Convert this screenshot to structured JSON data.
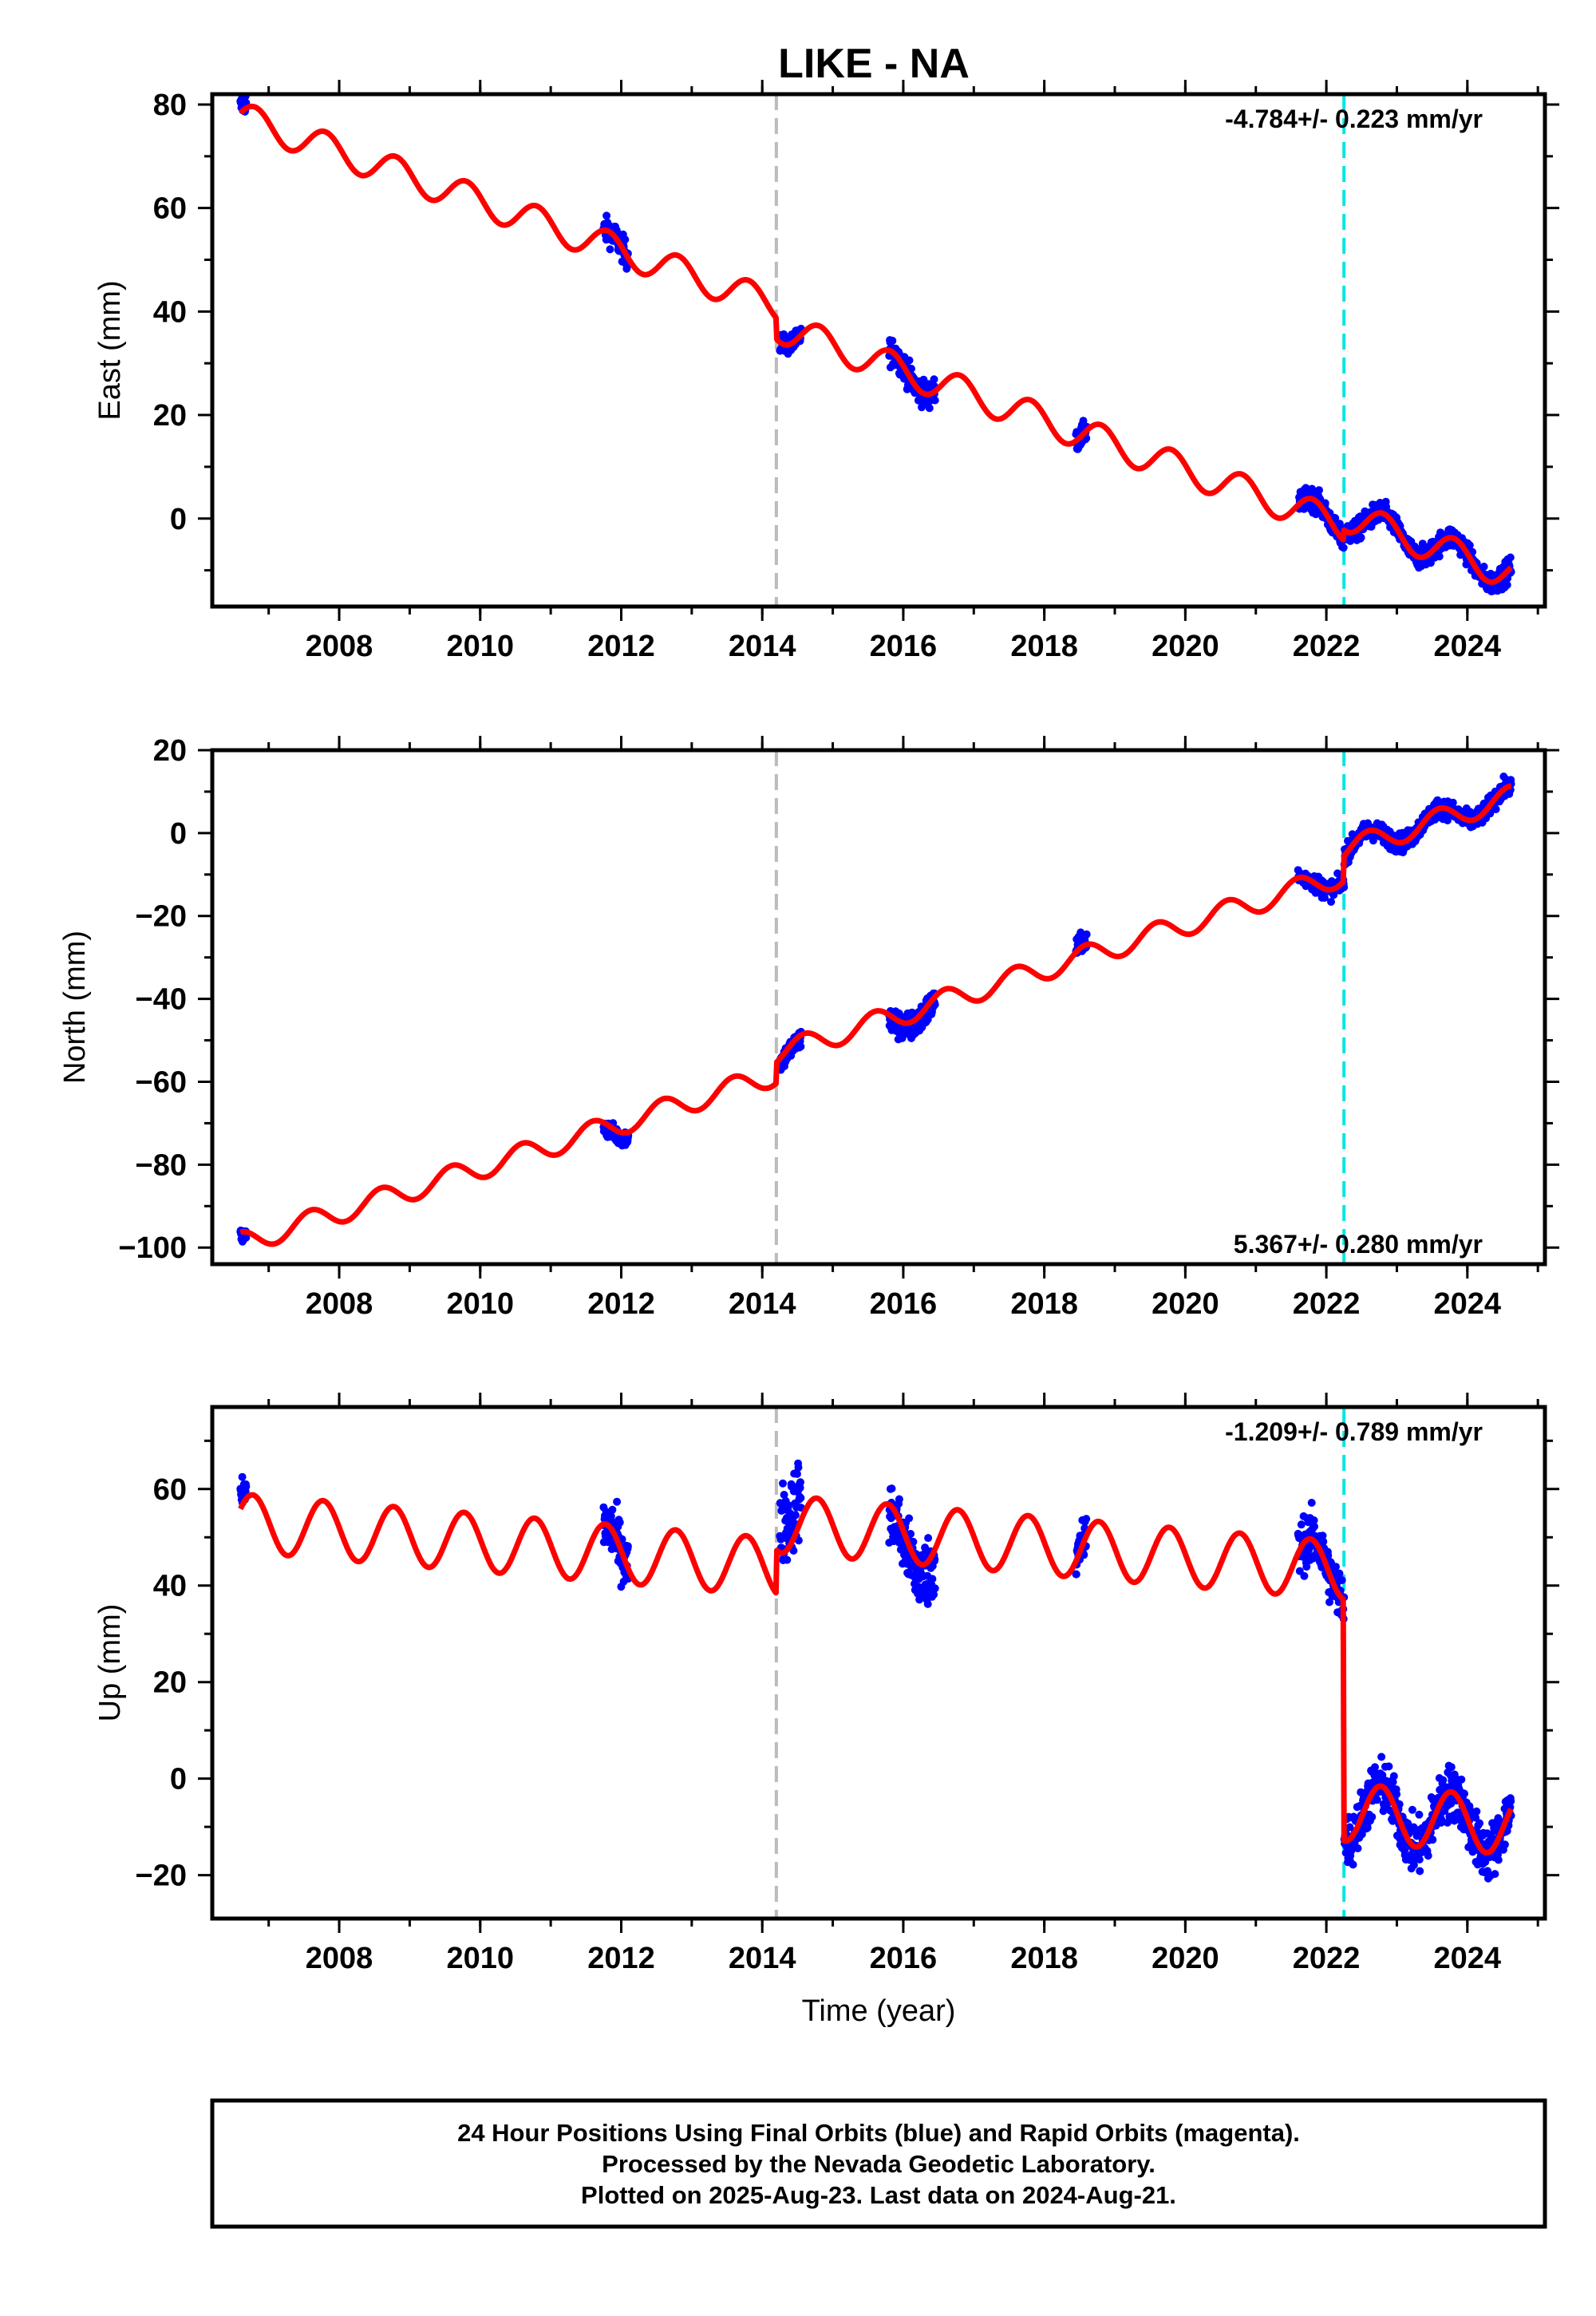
{
  "title": "LIKE - NA",
  "footer": {
    "lines": [
      "24 Hour Positions Using Final Orbits (blue) and Rapid Orbits (magenta).",
      "Processed by the Nevada Geodetic Laboratory.",
      "Plotted on 2025-Aug-23. Last data on 2024-Aug-21."
    ]
  },
  "colors": {
    "data_points": "#0000ff",
    "model_line": "#ff0000",
    "event_line_gray": "#bbbbbb",
    "event_line_cyan": "#00e5e5",
    "frame": "#000000"
  },
  "chart_data": [
    {
      "type": "scatter",
      "name": "east",
      "xlabel": "",
      "ylabel": "East (mm)",
      "xlim": [
        2006.2,
        2025.1
      ],
      "ylim": [
        -17,
        82
      ],
      "xticks": [
        2008,
        2010,
        2012,
        2014,
        2016,
        2018,
        2020,
        2022,
        2024
      ],
      "xtick_labels": [
        "2008",
        "2010",
        "2012",
        "2014",
        "2016",
        "2018",
        "2020",
        "2022",
        "2024"
      ],
      "yticks": [
        0,
        20,
        40,
        60,
        80
      ],
      "ytick_labels": [
        "0",
        "20",
        "40",
        "60",
        "80"
      ],
      "rate_text": "-4.784+/- 0.223 mm/yr",
      "rate_position": "top-right",
      "event_lines": [
        {
          "x": 2014.2,
          "color": "gray"
        },
        {
          "x": 2022.25,
          "color": "cyan"
        }
      ],
      "model": {
        "start": 2006.6,
        "end": 2024.62,
        "base": 77.5,
        "rate": -4.784,
        "annual_amp": 3.0,
        "annual_phase": 0.3,
        "steps": [
          {
            "t": 2014.2,
            "dy": -4
          },
          {
            "t": 2022.25,
            "dy": 2
          }
        ]
      },
      "data_segments": [
        {
          "start": 2006.6,
          "end": 2006.68,
          "offset": 1.2,
          "scatter": 1.5
        },
        {
          "start": 2011.75,
          "end": 2012.1,
          "offset": 0,
          "scatter": 1.8
        },
        {
          "start": 2014.25,
          "end": 2014.55,
          "offset": 0,
          "scatter": 1.3
        },
        {
          "start": 2015.8,
          "end": 2016.45,
          "offset": 0,
          "scatter": 1.8
        },
        {
          "start": 2018.45,
          "end": 2018.6,
          "offset": 0,
          "scatter": 1.5
        },
        {
          "start": 2021.6,
          "end": 2024.62,
          "offset": 0,
          "scatter": 1.5
        }
      ]
    },
    {
      "type": "scatter",
      "name": "north",
      "xlabel": "",
      "ylabel": "North (mm)",
      "xlim": [
        2006.2,
        2025.1
      ],
      "ylim": [
        -104,
        20
      ],
      "xticks": [
        2008,
        2010,
        2012,
        2014,
        2016,
        2018,
        2020,
        2022,
        2024
      ],
      "xtick_labels": [
        "2008",
        "2010",
        "2012",
        "2014",
        "2016",
        "2018",
        "2020",
        "2022",
        "2024"
      ],
      "yticks": [
        -100,
        -80,
        -60,
        -40,
        -20,
        0,
        20
      ],
      "ytick_labels": [
        "−100",
        "−80",
        "−60",
        "−40",
        "−20",
        "0",
        "20"
      ],
      "rate_text": "5.367+/- 0.280 mm/yr",
      "rate_position": "bottom-right",
      "event_lines": [
        {
          "x": 2014.2,
          "color": "gray"
        },
        {
          "x": 2022.25,
          "color": "cyan"
        }
      ],
      "model": {
        "start": 2006.6,
        "end": 2024.62,
        "base": -99,
        "rate": 5.367,
        "annual_amp": 2.7,
        "annual_phase": 1.6,
        "steps": [
          {
            "t": 2014.2,
            "dy": 5
          },
          {
            "t": 2022.25,
            "dy": 6
          }
        ]
      },
      "data_segments": [
        {
          "start": 2006.6,
          "end": 2006.68,
          "offset": -1,
          "scatter": 1.2
        },
        {
          "start": 2011.75,
          "end": 2012.1,
          "offset": -1,
          "scatter": 1.5
        },
        {
          "start": 2014.25,
          "end": 2014.55,
          "offset": -1,
          "scatter": 1.8
        },
        {
          "start": 2015.8,
          "end": 2016.45,
          "offset": -1,
          "scatter": 2.5
        },
        {
          "start": 2018.45,
          "end": 2018.6,
          "offset": 1,
          "scatter": 1.5
        },
        {
          "start": 2021.6,
          "end": 2024.62,
          "offset": 0,
          "scatter": 1.6
        }
      ]
    },
    {
      "type": "scatter",
      "name": "up",
      "xlabel": "Time (year)",
      "ylabel": "Up (mm)",
      "xlim": [
        2006.2,
        2025.1
      ],
      "ylim": [
        -29,
        77
      ],
      "xticks": [
        2008,
        2010,
        2012,
        2014,
        2016,
        2018,
        2020,
        2022,
        2024
      ],
      "xtick_labels": [
        "2008",
        "2010",
        "2012",
        "2014",
        "2016",
        "2018",
        "2020",
        "2022",
        "2024"
      ],
      "yticks": [
        -20,
        0,
        20,
        40,
        60
      ],
      "ytick_labels": [
        "−20",
        "0",
        "20",
        "40",
        "60"
      ],
      "rate_text": "-1.209+/- 0.789 mm/yr",
      "rate_position": "top-right",
      "event_lines": [
        {
          "x": 2014.2,
          "color": "gray"
        },
        {
          "x": 2022.25,
          "color": "cyan"
        }
      ],
      "model": {
        "start": 2006.6,
        "end": 2024.62,
        "base": 53,
        "rate": -1.209,
        "annual_amp": 6.0,
        "annual_phase": 0.5,
        "steps": [
          {
            "t": 2014.2,
            "dy": 9
          },
          {
            "t": 2022.25,
            "dy": -50
          }
        ]
      },
      "data_segments": [
        {
          "start": 2006.6,
          "end": 2006.68,
          "offset": 2,
          "scatter": 2.5
        },
        {
          "start": 2011.75,
          "end": 2012.1,
          "offset": 0,
          "scatter": 4
        },
        {
          "start": 2014.25,
          "end": 2014.55,
          "offset": 6,
          "scatter": 6
        },
        {
          "start": 2015.8,
          "end": 2016.45,
          "offset": -2,
          "scatter": 5
        },
        {
          "start": 2018.45,
          "end": 2018.6,
          "offset": 0,
          "scatter": 4
        },
        {
          "start": 2021.6,
          "end": 2024.62,
          "offset": 0,
          "scatter": 4
        }
      ]
    }
  ]
}
